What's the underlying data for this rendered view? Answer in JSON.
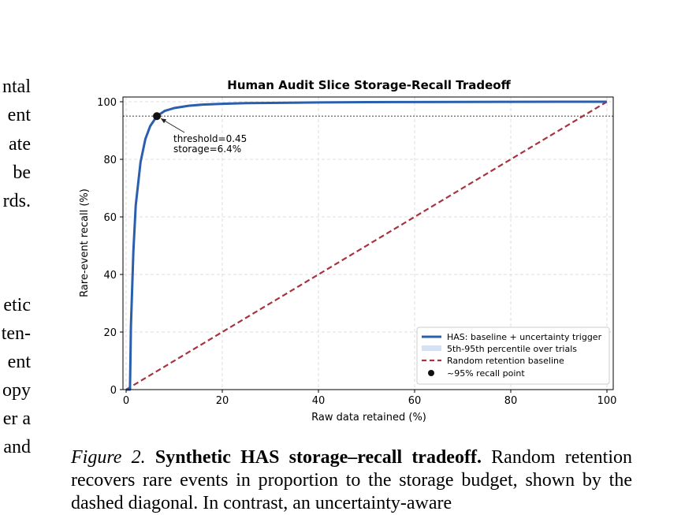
{
  "left_column_fragments": [
    "ntal",
    "ent",
    "ate",
    "be",
    "rds.",
    "etic",
    "ten-",
    "ent",
    "opy",
    "er a",
    "and"
  ],
  "caption": {
    "label": "Figure 2.",
    "title": "Synthetic HAS storage–recall tradeoff.",
    "text": "Random retention recovers rare events in proportion to the storage budget, shown by the dashed diagonal. In contrast, an uncertainty-aware"
  },
  "colors": {
    "has_curve": "#2a5fae",
    "random_line": "#a8323e",
    "band": "#d6e2f3",
    "threshold_line": "#666666",
    "marker": "#111111"
  },
  "chart_data": {
    "type": "line",
    "title": "Human Audit Slice Storage-Recall Tradeoff",
    "xlabel": "Raw data retained (%)",
    "ylabel": "Rare-event recall (%)",
    "xlim": [
      0,
      100
    ],
    "ylim": [
      0,
      100
    ],
    "xticks": [
      "0",
      "20",
      "40",
      "60",
      "80",
      "100"
    ],
    "yticks": [
      "0",
      "20",
      "40",
      "60",
      "80",
      "100"
    ],
    "grid": true,
    "legend_position": "lower-right",
    "series": [
      {
        "name": "HAS: baseline + uncertainty trigger",
        "style": "solid",
        "x": [
          0,
          0.8,
          1.0,
          1.5,
          2.0,
          3.0,
          4.0,
          5.0,
          6.4,
          8.0,
          10,
          13,
          16,
          20,
          25,
          30,
          40,
          50,
          60,
          70,
          80,
          90,
          100
        ],
        "y": [
          0,
          0,
          22,
          48,
          64,
          79,
          87,
          91.5,
          95,
          96.8,
          97.8,
          98.6,
          99.0,
          99.3,
          99.5,
          99.6,
          99.75,
          99.85,
          99.9,
          99.95,
          99.97,
          99.99,
          100
        ]
      },
      {
        "name": "Random retention baseline",
        "style": "dashed",
        "x": [
          0,
          100
        ],
        "y": [
          0,
          100
        ]
      }
    ],
    "band": {
      "name": "5th-95th percentile over trials"
    },
    "threshold_y": 95,
    "point": {
      "name": "~95% recall point",
      "x": 6.4,
      "y": 95,
      "annotation": [
        "threshold=0.45",
        "storage=6.4%"
      ]
    }
  }
}
